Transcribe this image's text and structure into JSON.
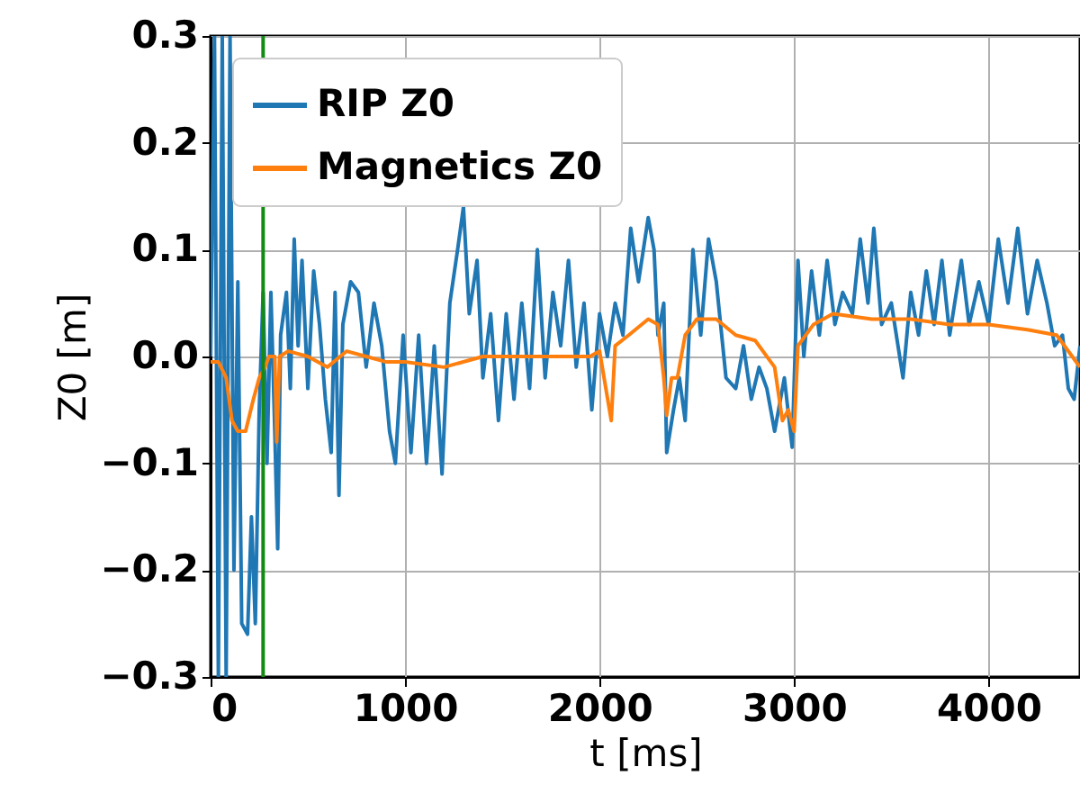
{
  "chart_data": {
    "type": "line",
    "xlabel": "t [ms]",
    "ylabel": "Z0 [m]",
    "xlim": [
      0,
      4470
    ],
    "ylim": [
      -0.3,
      0.3
    ],
    "xticks": [
      0,
      1000,
      2000,
      3000,
      4000
    ],
    "yticks": [
      {
        "value": -0.3,
        "label": "−0.3"
      },
      {
        "value": -0.2,
        "label": "−0.2"
      },
      {
        "value": -0.1,
        "label": "−0.1"
      },
      {
        "value": 0,
        "label": "0.0"
      },
      {
        "value": 0.1,
        "label": "0.1"
      },
      {
        "value": 0.2,
        "label": "0.2"
      },
      {
        "value": 0.3,
        "label": "0.3"
      }
    ],
    "grid": true,
    "legend": "top left",
    "marker": "none",
    "line_style": "solid",
    "ref_lines": [
      {
        "axis": "x",
        "value": 270,
        "label": null,
        "color": "#138a13"
      }
    ],
    "series": [
      {
        "name": "RIP Z0",
        "color": "#1f77b4",
        "x": [
          0,
          20,
          40,
          60,
          80,
          100,
          120,
          140,
          160,
          190,
          210,
          230,
          250,
          270,
          290,
          310,
          330,
          345,
          360,
          390,
          410,
          430,
          450,
          470,
          500,
          530,
          560,
          590,
          620,
          640,
          660,
          680,
          720,
          760,
          800,
          840,
          880,
          920,
          950,
          990,
          1030,
          1070,
          1110,
          1150,
          1190,
          1230,
          1270,
          1300,
          1330,
          1370,
          1400,
          1440,
          1480,
          1520,
          1560,
          1600,
          1640,
          1680,
          1720,
          1760,
          1800,
          1840,
          1880,
          1920,
          1960,
          2000,
          2040,
          2080,
          2120,
          2160,
          2200,
          2250,
          2280,
          2300,
          2330,
          2345,
          2380,
          2410,
          2440,
          2480,
          2520,
          2560,
          2600,
          2650,
          2700,
          2740,
          2780,
          2820,
          2860,
          2900,
          2950,
          2990,
          3020,
          3050,
          3090,
          3130,
          3170,
          3210,
          3250,
          3300,
          3340,
          3380,
          3410,
          3450,
          3500,
          3560,
          3600,
          3640,
          3680,
          3720,
          3760,
          3800,
          3860,
          3900,
          3950,
          4000,
          4050,
          4100,
          4150,
          4200,
          4250,
          4300,
          4340,
          4380,
          4410,
          4440,
          4470
        ],
        "values": [
          0.0,
          0.3,
          -0.3,
          0.3,
          -0.3,
          0.3,
          -0.2,
          0.07,
          -0.25,
          -0.26,
          -0.15,
          -0.25,
          -0.05,
          0.06,
          -0.1,
          0.06,
          -0.07,
          -0.18,
          0.02,
          0.06,
          -0.03,
          0.11,
          0.01,
          0.09,
          -0.03,
          0.08,
          0.03,
          -0.04,
          -0.09,
          0.06,
          -0.13,
          0.03,
          0.07,
          0.06,
          -0.01,
          0.05,
          0.01,
          -0.07,
          -0.1,
          0.02,
          -0.09,
          0.02,
          -0.1,
          0.01,
          -0.11,
          0.05,
          0.1,
          0.14,
          0.04,
          0.09,
          -0.02,
          0.04,
          -0.06,
          0.04,
          -0.04,
          0.05,
          -0.03,
          0.1,
          -0.02,
          0.06,
          0.01,
          0.09,
          -0.01,
          0.05,
          -0.05,
          0.04,
          0.0,
          0.05,
          0.02,
          0.12,
          0.07,
          0.13,
          0.1,
          0.02,
          0.05,
          -0.09,
          -0.05,
          -0.02,
          -0.06,
          0.1,
          0.02,
          0.11,
          0.07,
          -0.02,
          -0.03,
          0.01,
          -0.04,
          -0.01,
          -0.03,
          -0.07,
          -0.02,
          -0.085,
          0.09,
          0.0,
          0.08,
          0.02,
          0.09,
          0.03,
          0.06,
          0.04,
          0.11,
          0.05,
          0.12,
          0.03,
          0.05,
          -0.02,
          0.06,
          0.02,
          0.08,
          0.03,
          0.09,
          0.02,
          0.09,
          0.03,
          0.07,
          0.03,
          0.11,
          0.05,
          0.12,
          0.04,
          0.09,
          0.05,
          0.01,
          0.02,
          -0.03,
          -0.04,
          0.01
        ]
      },
      {
        "name": "Magnetics Z0",
        "color": "#ff7f0e",
        "x": [
          0,
          40,
          80,
          110,
          140,
          180,
          220,
          250,
          280,
          300,
          330,
          340,
          355,
          400,
          500,
          600,
          700,
          800,
          900,
          1000,
          1200,
          1400,
          1600,
          1800,
          1950,
          2000,
          2060,
          2080,
          2150,
          2250,
          2300,
          2330,
          2345,
          2370,
          2400,
          2440,
          2500,
          2600,
          2700,
          2800,
          2900,
          2940,
          2970,
          3000,
          3020,
          3100,
          3200,
          3400,
          3600,
          3800,
          4000,
          4200,
          4350,
          4430,
          4470
        ],
        "values": [
          -0.005,
          -0.005,
          -0.02,
          -0.06,
          -0.07,
          -0.07,
          -0.04,
          -0.02,
          -0.01,
          0.0,
          0.0,
          -0.08,
          0.0,
          0.005,
          0.0,
          -0.01,
          0.005,
          0.0,
          -0.005,
          -0.005,
          -0.01,
          0.0,
          0.0,
          0.0,
          0.0,
          0.005,
          -0.06,
          0.01,
          0.02,
          0.035,
          0.03,
          -0.02,
          -0.055,
          -0.02,
          -0.02,
          0.02,
          0.035,
          0.035,
          0.02,
          0.015,
          -0.01,
          -0.06,
          -0.05,
          -0.07,
          0.01,
          0.03,
          0.04,
          0.035,
          0.035,
          0.03,
          0.03,
          0.025,
          0.02,
          0.0,
          -0.01
        ]
      }
    ]
  }
}
